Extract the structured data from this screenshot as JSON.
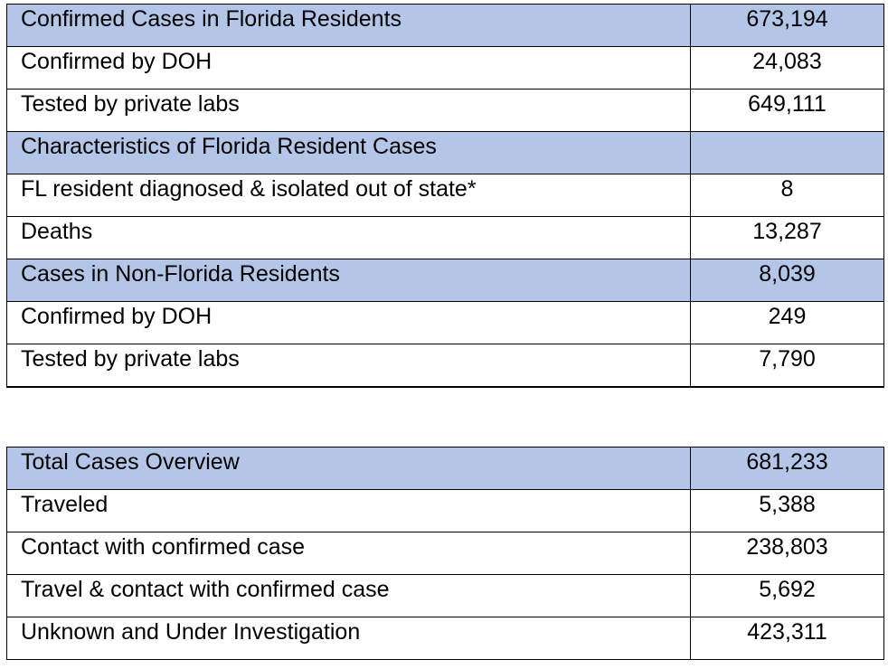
{
  "florida_cases_table": {
    "rows": [
      {
        "label": "Confirmed Cases in Florida Residents",
        "value": "673,194"
      },
      {
        "label": "Confirmed by DOH",
        "value": "24,083"
      },
      {
        "label": "Tested by private labs",
        "value": "649,111"
      },
      {
        "label": "Characteristics of Florida Resident Cases",
        "value": ""
      },
      {
        "label": "FL resident diagnosed & isolated out of state*",
        "value": "8"
      },
      {
        "label": "Deaths",
        "value": "13,287"
      },
      {
        "label": "Cases in Non-Florida Residents",
        "value": "8,039"
      },
      {
        "label": "Confirmed by DOH",
        "value": "249"
      },
      {
        "label": "Tested by private labs",
        "value": "7,790"
      }
    ]
  },
  "total_cases_table": {
    "rows": [
      {
        "label": "Total Cases Overview",
        "value": "681,233"
      },
      {
        "label": "Traveled",
        "value": "5,388"
      },
      {
        "label": "Contact with confirmed case",
        "value": "238,803"
      },
      {
        "label": "Travel & contact with confirmed case",
        "value": "5,692"
      },
      {
        "label": "Unknown and Under Investigation",
        "value": "423,311"
      }
    ]
  },
  "colors": {
    "header_fill": "#b4c6e7",
    "border": "#000000",
    "text": "#000000"
  }
}
